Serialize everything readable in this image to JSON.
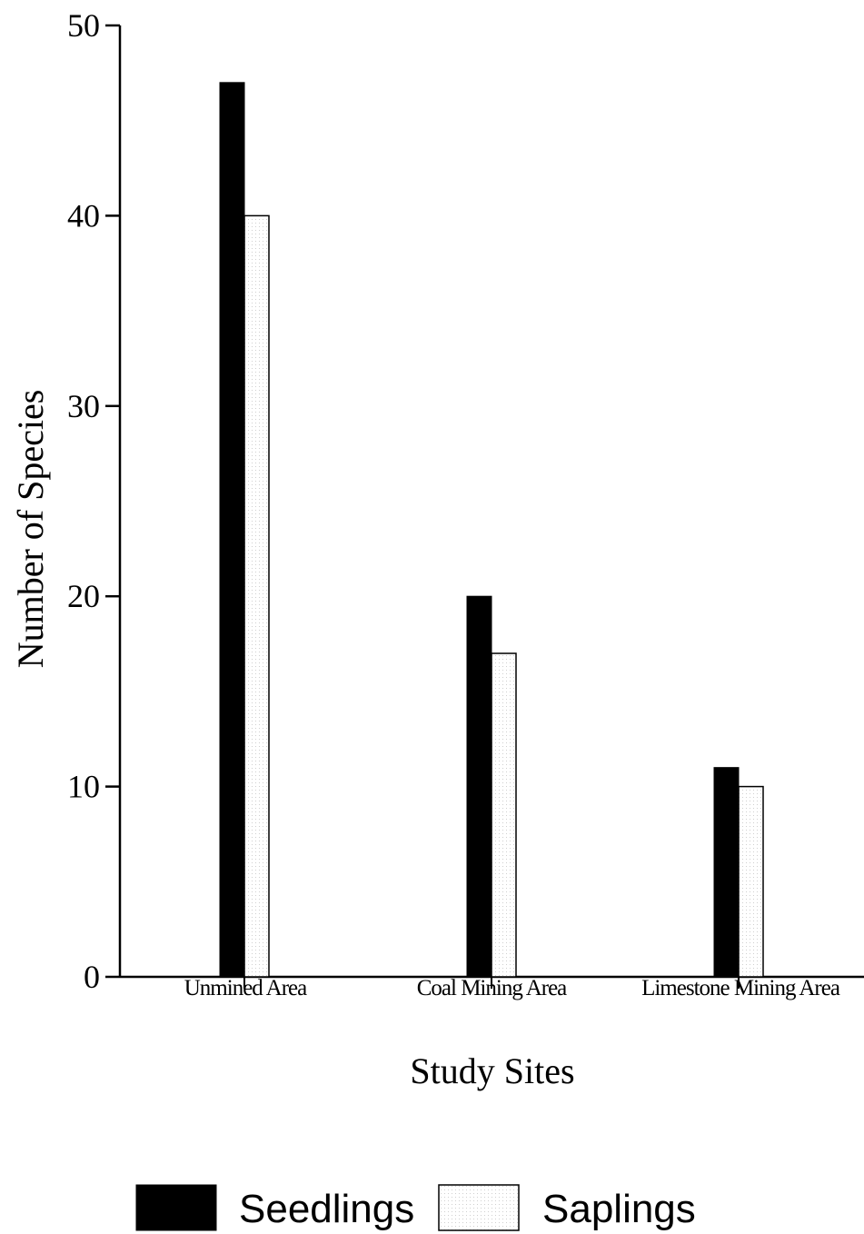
{
  "chart_data": {
    "type": "bar",
    "categories": [
      "Unmined Area",
      "Coal Mining Area",
      "Limestone Mining Area"
    ],
    "series": [
      {
        "name": "Seedlings",
        "values": [
          47,
          20,
          11
        ],
        "color": "#000000"
      },
      {
        "name": "Saplings",
        "values": [
          40,
          17,
          10
        ],
        "color": "#ffffff"
      }
    ],
    "xlabel": "Study Sites",
    "ylabel": "Number of Species",
    "ylim": [
      0,
      50
    ],
    "yticks": [
      0,
      10,
      20,
      30,
      40,
      50
    ],
    "grid": false,
    "legend_position": "bottom-center"
  }
}
